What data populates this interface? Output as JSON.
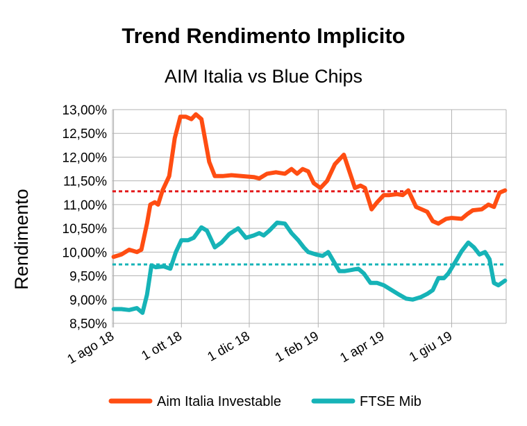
{
  "chart_data": {
    "type": "line",
    "title": "Trend Rendimento Implicito",
    "subtitle": "AIM Italia vs Blue Chips",
    "xlabel": "",
    "ylabel": "Rendimento",
    "x_range": [
      "2018-07-31",
      "2019-07-20"
    ],
    "ylim": [
      8.5,
      13.0
    ],
    "y_ticks": [
      "8,50%",
      "9,00%",
      "9,50%",
      "10,00%",
      "10,50%",
      "11,00%",
      "11,50%",
      "12,00%",
      "12,50%",
      "13,00%"
    ],
    "y_tick_values": [
      8.5,
      9.0,
      9.5,
      10.0,
      10.5,
      11.0,
      11.5,
      12.0,
      12.5,
      13.0
    ],
    "x_ticks": [
      "1 ago 18",
      "1 ott 18",
      "1 dic 18",
      "1 feb 19",
      "1 apr 19",
      "1 giu 19"
    ],
    "x_tick_dates": [
      "2018-08-01",
      "2018-10-01",
      "2018-12-01",
      "2019-02-01",
      "2019-04-01",
      "2019-06-01"
    ],
    "grid": true,
    "legend_position": "bottom",
    "series": [
      {
        "name": "Aim Italia Investable",
        "color": "#ff4d12",
        "points": [
          [
            "2018-08-01",
            9.9
          ],
          [
            "2018-08-08",
            9.95
          ],
          [
            "2018-08-15",
            10.05
          ],
          [
            "2018-08-22",
            10.0
          ],
          [
            "2018-08-26",
            10.05
          ],
          [
            "2018-08-31",
            10.6
          ],
          [
            "2018-09-03",
            11.0
          ],
          [
            "2018-09-07",
            11.05
          ],
          [
            "2018-09-10",
            11.0
          ],
          [
            "2018-09-14",
            11.3
          ],
          [
            "2018-09-20",
            11.6
          ],
          [
            "2018-09-25",
            12.4
          ],
          [
            "2018-09-30",
            12.85
          ],
          [
            "2018-10-05",
            12.85
          ],
          [
            "2018-10-10",
            12.8
          ],
          [
            "2018-10-14",
            12.9
          ],
          [
            "2018-10-19",
            12.8
          ],
          [
            "2018-10-26",
            11.9
          ],
          [
            "2018-10-31",
            11.6
          ],
          [
            "2018-11-07",
            11.6
          ],
          [
            "2018-11-15",
            11.62
          ],
          [
            "2018-11-24",
            11.6
          ],
          [
            "2018-12-05",
            11.58
          ],
          [
            "2018-12-10",
            11.55
          ],
          [
            "2018-12-17",
            11.65
          ],
          [
            "2018-12-25",
            11.68
          ],
          [
            "2019-01-02",
            11.65
          ],
          [
            "2019-01-08",
            11.75
          ],
          [
            "2019-01-13",
            11.65
          ],
          [
            "2019-01-18",
            11.75
          ],
          [
            "2019-01-23",
            11.7
          ],
          [
            "2019-01-28",
            11.45
          ],
          [
            "2019-02-03",
            11.35
          ],
          [
            "2019-02-09",
            11.5
          ],
          [
            "2019-02-16",
            11.85
          ],
          [
            "2019-02-24",
            12.05
          ],
          [
            "2019-03-01",
            11.7
          ],
          [
            "2019-03-06",
            11.35
          ],
          [
            "2019-03-11",
            11.4
          ],
          [
            "2019-03-15",
            11.35
          ],
          [
            "2019-03-21",
            10.9
          ],
          [
            "2019-03-26",
            11.05
          ],
          [
            "2019-04-01",
            11.2
          ],
          [
            "2019-04-06",
            11.2
          ],
          [
            "2019-04-13",
            11.22
          ],
          [
            "2019-04-18",
            11.2
          ],
          [
            "2019-04-23",
            11.3
          ],
          [
            "2019-04-30",
            10.95
          ],
          [
            "2019-05-10",
            10.85
          ],
          [
            "2019-05-15",
            10.65
          ],
          [
            "2019-05-20",
            10.6
          ],
          [
            "2019-05-27",
            10.7
          ],
          [
            "2019-06-01",
            10.72
          ],
          [
            "2019-06-10",
            10.7
          ],
          [
            "2019-06-15",
            10.8
          ],
          [
            "2019-06-20",
            10.88
          ],
          [
            "2019-06-28",
            10.9
          ],
          [
            "2019-07-04",
            11.0
          ],
          [
            "2019-07-09",
            10.95
          ],
          [
            "2019-07-14",
            11.25
          ],
          [
            "2019-07-19",
            11.3
          ]
        ]
      },
      {
        "name": "FTSE Mib",
        "color": "#16b3b7",
        "points": [
          [
            "2018-08-01",
            8.8
          ],
          [
            "2018-08-08",
            8.8
          ],
          [
            "2018-08-15",
            8.78
          ],
          [
            "2018-08-22",
            8.82
          ],
          [
            "2018-08-27",
            8.72
          ],
          [
            "2018-08-31",
            9.1
          ],
          [
            "2018-09-04",
            9.72
          ],
          [
            "2018-09-08",
            9.68
          ],
          [
            "2018-09-15",
            9.7
          ],
          [
            "2018-09-21",
            9.65
          ],
          [
            "2018-09-26",
            10.0
          ],
          [
            "2018-10-01",
            10.25
          ],
          [
            "2018-10-07",
            10.25
          ],
          [
            "2018-10-12",
            10.3
          ],
          [
            "2018-10-19",
            10.52
          ],
          [
            "2018-10-24",
            10.45
          ],
          [
            "2018-10-31",
            10.1
          ],
          [
            "2018-11-06",
            10.2
          ],
          [
            "2018-11-13",
            10.38
          ],
          [
            "2018-11-21",
            10.5
          ],
          [
            "2018-11-28",
            10.3
          ],
          [
            "2018-12-05",
            10.35
          ],
          [
            "2018-12-10",
            10.4
          ],
          [
            "2018-12-14",
            10.35
          ],
          [
            "2018-12-19",
            10.45
          ],
          [
            "2018-12-26",
            10.62
          ],
          [
            "2019-01-02",
            10.6
          ],
          [
            "2019-01-08",
            10.4
          ],
          [
            "2019-01-14",
            10.25
          ],
          [
            "2019-01-19",
            10.1
          ],
          [
            "2019-01-23",
            10.0
          ],
          [
            "2019-01-30",
            9.95
          ],
          [
            "2019-02-05",
            9.92
          ],
          [
            "2019-02-10",
            10.0
          ],
          [
            "2019-02-15",
            9.8
          ],
          [
            "2019-02-20",
            9.6
          ],
          [
            "2019-02-25",
            9.6
          ],
          [
            "2019-03-02",
            9.62
          ],
          [
            "2019-03-09",
            9.65
          ],
          [
            "2019-03-14",
            9.55
          ],
          [
            "2019-03-20",
            9.35
          ],
          [
            "2019-03-26",
            9.35
          ],
          [
            "2019-04-01",
            9.3
          ],
          [
            "2019-04-08",
            9.2
          ],
          [
            "2019-04-15",
            9.1
          ],
          [
            "2019-04-21",
            9.02
          ],
          [
            "2019-04-27",
            9.0
          ],
          [
            "2019-05-04",
            9.05
          ],
          [
            "2019-05-10",
            9.12
          ],
          [
            "2019-05-15",
            9.2
          ],
          [
            "2019-05-20",
            9.45
          ],
          [
            "2019-05-25",
            9.45
          ],
          [
            "2019-05-29",
            9.55
          ],
          [
            "2019-06-05",
            9.82
          ],
          [
            "2019-06-10",
            10.02
          ],
          [
            "2019-06-16",
            10.2
          ],
          [
            "2019-06-21",
            10.1
          ],
          [
            "2019-06-26",
            9.95
          ],
          [
            "2019-07-01",
            10.0
          ],
          [
            "2019-07-05",
            9.85
          ],
          [
            "2019-07-09",
            9.35
          ],
          [
            "2019-07-13",
            9.3
          ],
          [
            "2019-07-19",
            9.4
          ]
        ]
      }
    ],
    "reference_lines": [
      {
        "value": 11.28,
        "color": "#e41a1c",
        "style": "dotted"
      },
      {
        "value": 9.74,
        "color": "#16b3b7",
        "style": "dotted"
      }
    ]
  }
}
